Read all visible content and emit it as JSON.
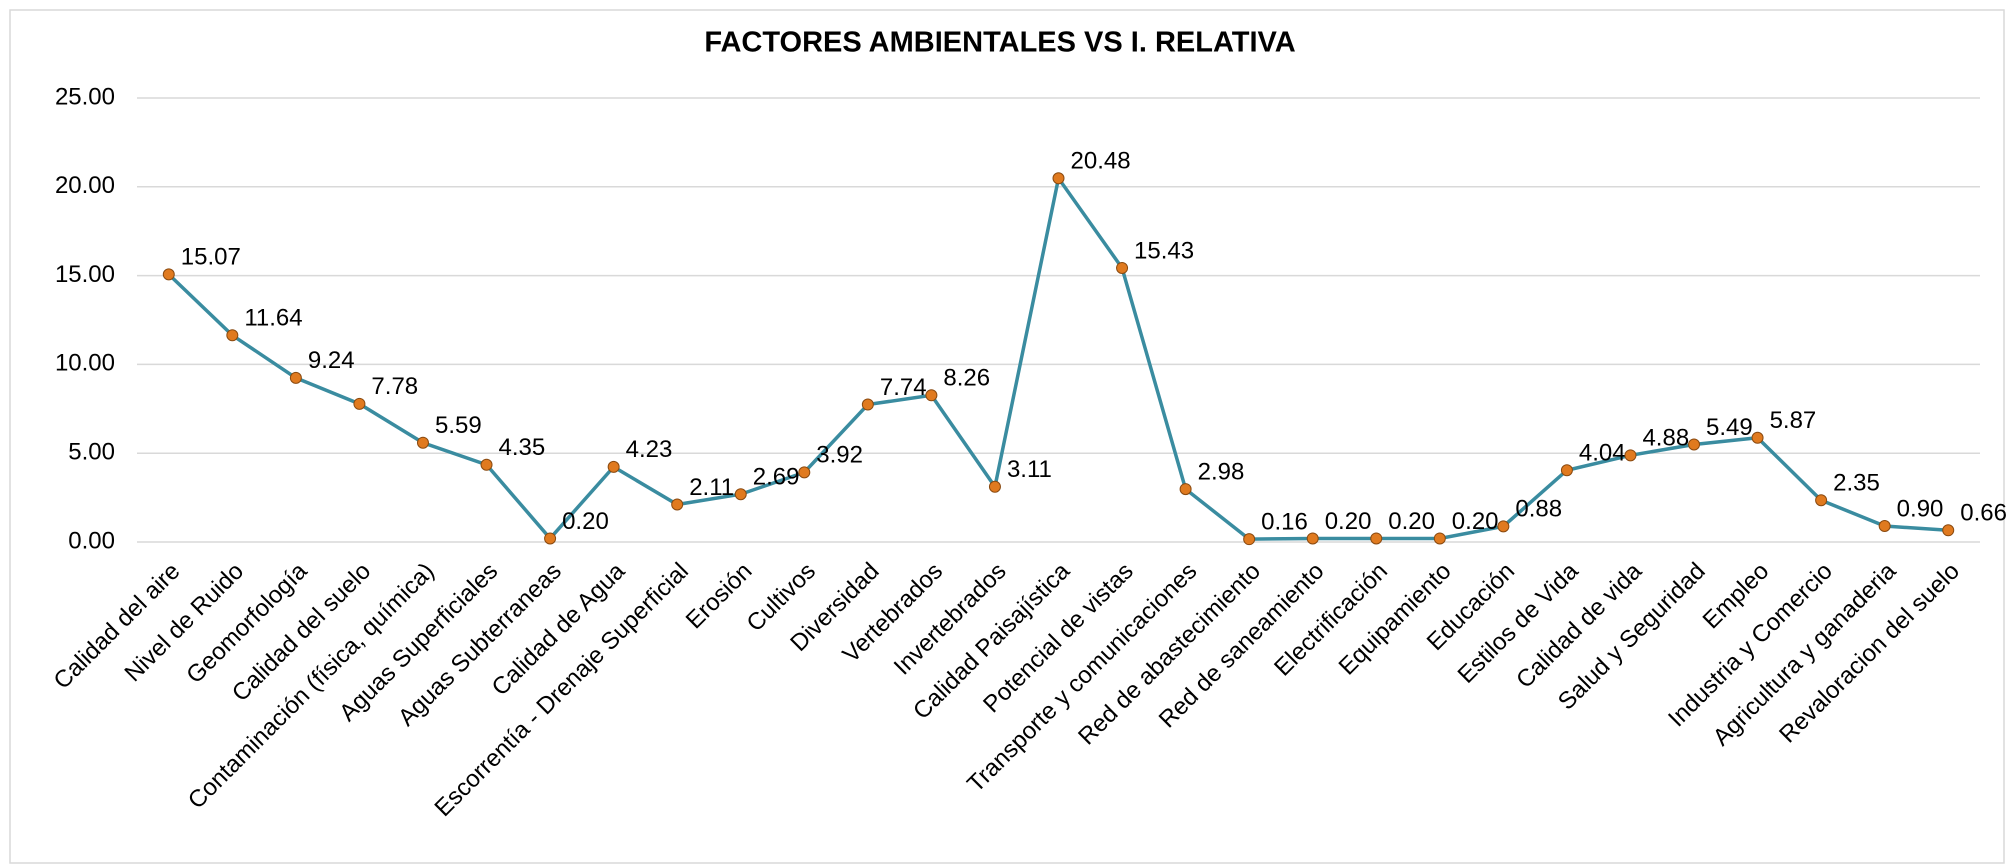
{
  "chart_data": {
    "type": "line",
    "title": "FACTORES AMBIENTALES   VS I. RELATIVA",
    "categories": [
      "Calidad del aire",
      "Nivel de Ruido",
      "Geomorfología",
      "Calidad del suelo",
      "Contaminación (física, química)",
      "Aguas Superficiales",
      "Aguas Subterraneas",
      "Calidad de Agua",
      "Escorrentía - Drenaje Superficial",
      "Erosión",
      "Cultivos",
      "Diversidad",
      "Vertebrados",
      "Invertebrados",
      "Calidad Paisajística",
      "Potencial de vistas",
      "Transporte y comunicaciones",
      "Red de abastecimiento",
      "Red de saneamiento",
      "Electrificación",
      "Equipamiento",
      "Educación",
      "Estilos de Vida",
      "Calidad de vida",
      "Salud y Seguridad",
      "Empleo",
      "Industria y Comercio",
      "Agricultura y ganaderia",
      "Revaloracion del suelo"
    ],
    "values": [
      15.07,
      11.64,
      9.24,
      7.78,
      5.59,
      4.35,
      0.2,
      4.23,
      2.11,
      2.69,
      3.92,
      7.74,
      8.26,
      3.11,
      20.48,
      15.43,
      2.98,
      0.16,
      0.2,
      0.2,
      0.2,
      0.88,
      4.04,
      4.88,
      5.49,
      5.87,
      2.35,
      0.9,
      0.66
    ],
    "value_labels": [
      "15.07",
      "11.64",
      "9.24",
      "7.78",
      "5.59",
      "4.35",
      "0.20",
      "4.23",
      "2.11",
      "2.69",
      "3.92",
      "7.74",
      "8.26",
      "3.11",
      "20.48",
      "15.43",
      "2.98",
      "0.16",
      "0.20",
      "0.20",
      "0.20",
      "0.88",
      "4.04",
      "4.88",
      "5.49",
      "5.87",
      "2.35",
      "0.90",
      "0.66"
    ],
    "color": "#3a8ca0",
    "marker_color": "#e07a1f",
    "ylim": [
      0,
      25
    ],
    "yticks": [
      {
        "value": 0,
        "label": "0.00"
      },
      {
        "value": 5,
        "label": "5.00"
      },
      {
        "value": 10,
        "label": "10.00"
      },
      {
        "value": 15,
        "label": "15.00"
      },
      {
        "value": 20,
        "label": "20.00"
      },
      {
        "value": 25,
        "label": "25.00"
      }
    ],
    "grid": true
  }
}
